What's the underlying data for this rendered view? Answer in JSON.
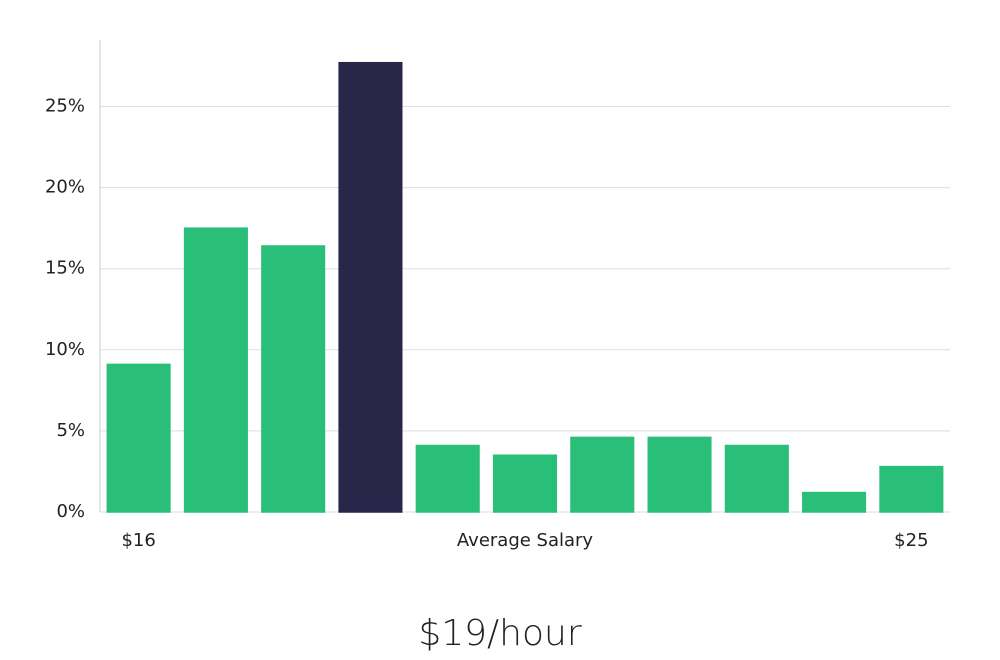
{
  "chart_data": {
    "type": "bar",
    "subtitle": "$19/hour",
    "x_label": "Average Salary",
    "categories": [
      "$16",
      null,
      null,
      null,
      null,
      null,
      null,
      null,
      null,
      null,
      "$25"
    ],
    "values": [
      9.1,
      17.5,
      16.4,
      27.7,
      4.1,
      3.5,
      4.6,
      4.6,
      4.1,
      1.2,
      2.8
    ],
    "colors": [
      "#2abf78",
      "#2abf78",
      "#2abf78",
      "#29264a",
      "#2abf78",
      "#2abf78",
      "#2abf78",
      "#2abf78",
      "#2abf78",
      "#2abf78",
      "#2abf78"
    ],
    "ylim": [
      0,
      29.1
    ],
    "yticks": [
      {
        "value": 0,
        "label": "0%"
      },
      {
        "value": 5,
        "label": "5%"
      },
      {
        "value": 10,
        "label": "10%"
      },
      {
        "value": 15,
        "label": "15%"
      },
      {
        "value": 20,
        "label": "20%"
      },
      {
        "value": 25,
        "label": "25%"
      }
    ],
    "grid": true
  }
}
